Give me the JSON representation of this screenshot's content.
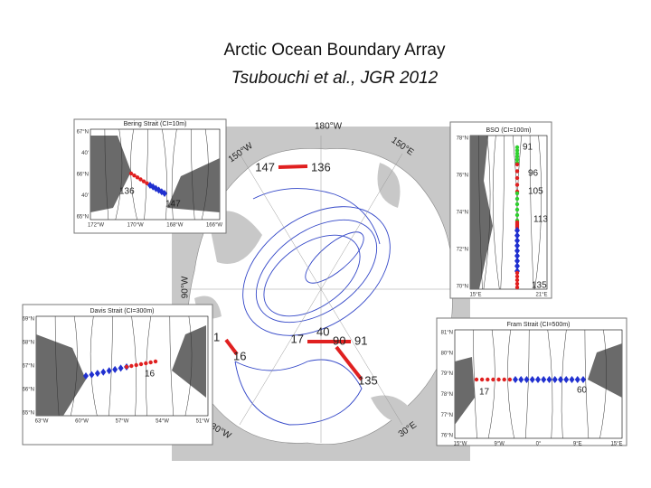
{
  "title": "Arctic Ocean Boundary Array",
  "subtitle": "Tsubouchi et al., JGR 2012",
  "main_map": {
    "longitudes": [
      "180°W",
      "150°W",
      "150°E",
      "90°W",
      "30°W",
      "30°E"
    ],
    "stations": [
      "147",
      "136",
      "17",
      "40",
      "90",
      "91",
      "16",
      "135",
      "1"
    ]
  },
  "insets": [
    {
      "title": "Bering Strait (CI=10m)",
      "y_labels": [
        "67°N",
        "40'",
        "66°N",
        "40'",
        "65°N"
      ],
      "x_labels": [
        "172°W",
        "170°W",
        "168°W",
        "166°W"
      ],
      "stations": [
        "136",
        "147"
      ]
    },
    {
      "title": "BSO (CI=100m)",
      "y_labels": [
        "78°N",
        "76°N",
        "74°N",
        "72°N",
        "70°N"
      ],
      "x_labels": [
        "15°E",
        "21°E"
      ],
      "stations": [
        "91",
        "96",
        "105",
        "113",
        "135"
      ]
    },
    {
      "title": "Davis Strait (CI=300m)",
      "y_labels": [
        "69°N",
        "68°N",
        "67°N",
        "66°N",
        "65°N"
      ],
      "x_labels": [
        "63°W",
        "60°W",
        "57°W",
        "54°W",
        "51°W"
      ],
      "stations": [
        "16"
      ]
    },
    {
      "title": "Fram Strait (CI=500m)",
      "y_labels": [
        "81°N",
        "80°N",
        "79°N",
        "78°N",
        "77°N",
        "76°N"
      ],
      "x_labels": [
        "15°W",
        "9°W",
        "0°",
        "9°E",
        "15°E"
      ],
      "stations": [
        "17",
        "60"
      ]
    }
  ]
}
